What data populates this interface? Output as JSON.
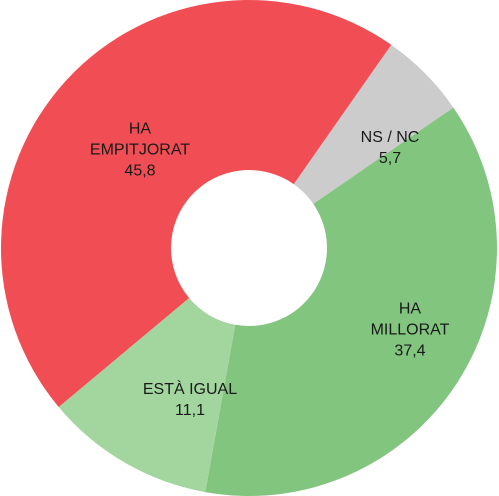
{
  "chart_data": {
    "type": "donut",
    "categories": [
      "NS / NC",
      "HA MILLORAT",
      "ESTÀ IGUAL",
      "HA EMPITJORAT"
    ],
    "values": [
      5.7,
      37.4,
      11.1,
      45.8
    ],
    "value_labels": [
      "5,7",
      "37,4",
      "11,1",
      "45,8"
    ],
    "colors": [
      "#cccccc",
      "#82c57e",
      "#a3d69e",
      "#f04e54"
    ]
  }
}
